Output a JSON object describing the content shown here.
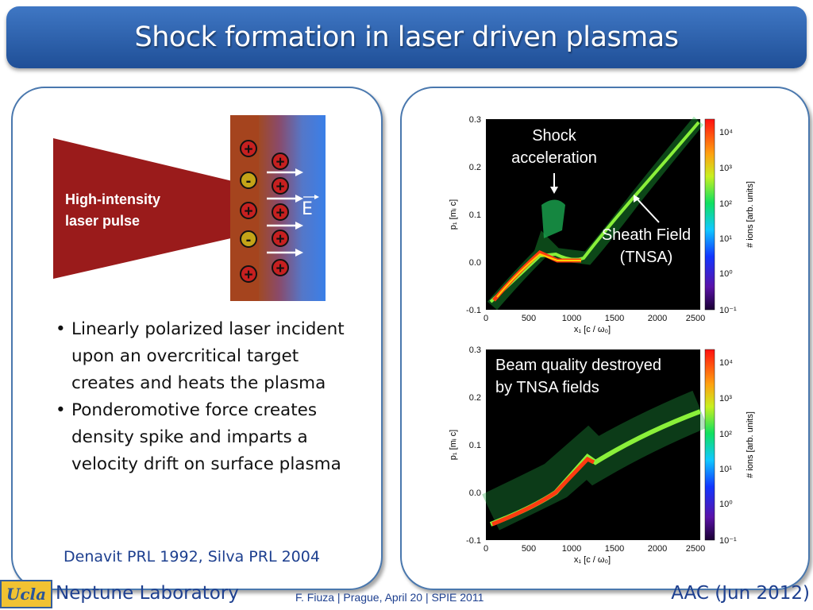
{
  "title": "Shock formation in laser driven plasmas",
  "diagram": {
    "laser_label_line1": "High-intensity",
    "laser_label_line2": "laser pulse",
    "field_label": "E",
    "charges": [
      "+",
      "-",
      "+",
      "-",
      "+",
      "+",
      "+",
      "+",
      "+",
      "+"
    ]
  },
  "bullets": [
    "Linearly polarized laser incident upon an overcritical target creates and heats the plasma",
    "Ponderomotive force creates density spike and imparts a velocity drift on surface plasma"
  ],
  "bullet_marker": "•",
  "references": "Denavit PRL 1992, Silva PRL 2004",
  "plot_top": {
    "annotation_shock_line1": "Shock",
    "annotation_shock_line2": "acceleration",
    "annotation_sheath_line1": "Sheath Field",
    "annotation_sheath_line2": "(TNSA)"
  },
  "plot_bottom": {
    "annotation_line1": "Beam quality destroyed",
    "annotation_line2": "by TNSA fields"
  },
  "plot_axes": {
    "ylabel": "p₁ [mᵢ c]",
    "xlabel": "x₁ [c / ω₀]",
    "colorbar_label": "# ions [arb. units]",
    "yticks": [
      "0.3",
      "0.2",
      "0.1",
      "0.0",
      "-0.1"
    ],
    "xticks": [
      "0",
      "500",
      "1000",
      "1500",
      "2000",
      "2500"
    ],
    "cticks": [
      "10⁴",
      "10³",
      "10²",
      "10¹",
      "10⁰",
      "10⁻¹"
    ]
  },
  "footer": {
    "logo_text": "Ucla",
    "lab": "Neptune Laboratory",
    "center": "F. Fiuza | Prague,  April 20 | SPIE 2011",
    "right": "AAC (Jun 2012)"
  }
}
